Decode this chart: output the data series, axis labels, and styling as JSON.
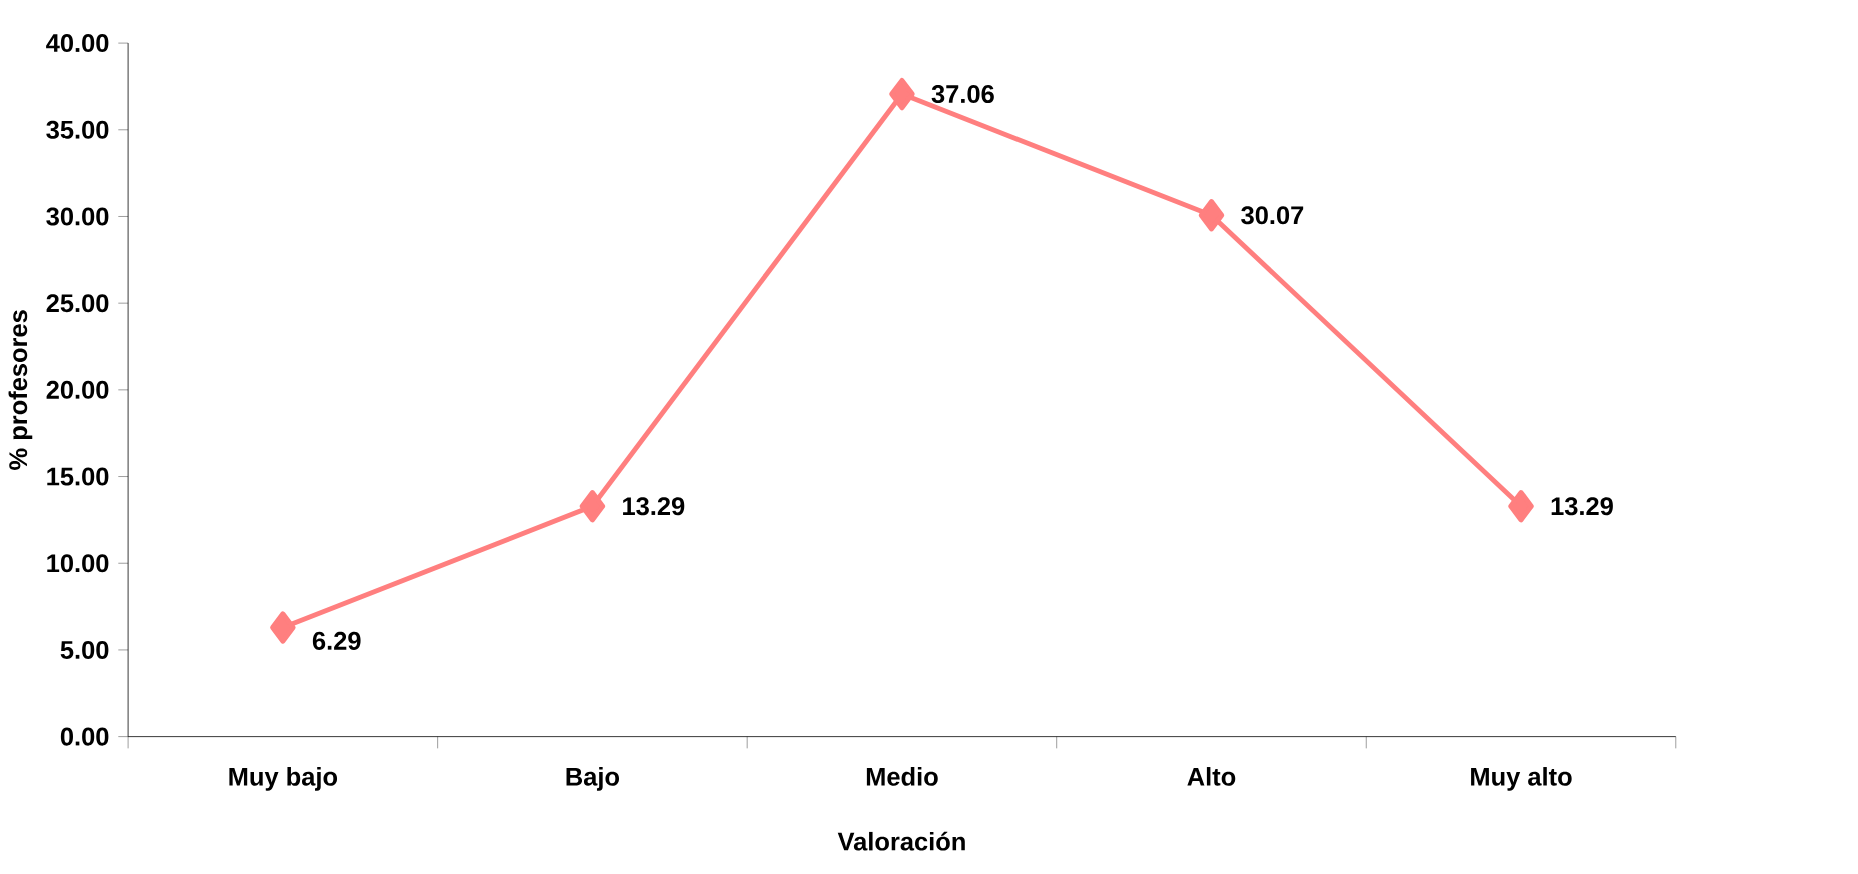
{
  "chart_data": {
    "type": "line",
    "xlabel": "Valoración",
    "ylabel": "% profesores",
    "categories": [
      "Muy bajo",
      "Bajo",
      "Medio",
      "Alto",
      "Muy alto"
    ],
    "values": [
      6.29,
      13.29,
      37.06,
      30.07,
      13.29
    ],
    "color": "#ff7f7f",
    "marker": "diamond",
    "data_labels": true,
    "grid": false,
    "ylim": [
      0,
      40
    ],
    "yticks": [
      {
        "value": 0,
        "label": "0.00"
      },
      {
        "value": 5,
        "label": "5.00"
      },
      {
        "value": 10,
        "label": "10.00"
      },
      {
        "value": 15,
        "label": "15.00"
      },
      {
        "value": 20,
        "label": "20.00"
      },
      {
        "value": 25,
        "label": "25.00"
      },
      {
        "value": 30,
        "label": "30.00"
      },
      {
        "value": 35,
        "label": "35.00"
      },
      {
        "value": 40,
        "label": "40.00"
      }
    ]
  }
}
